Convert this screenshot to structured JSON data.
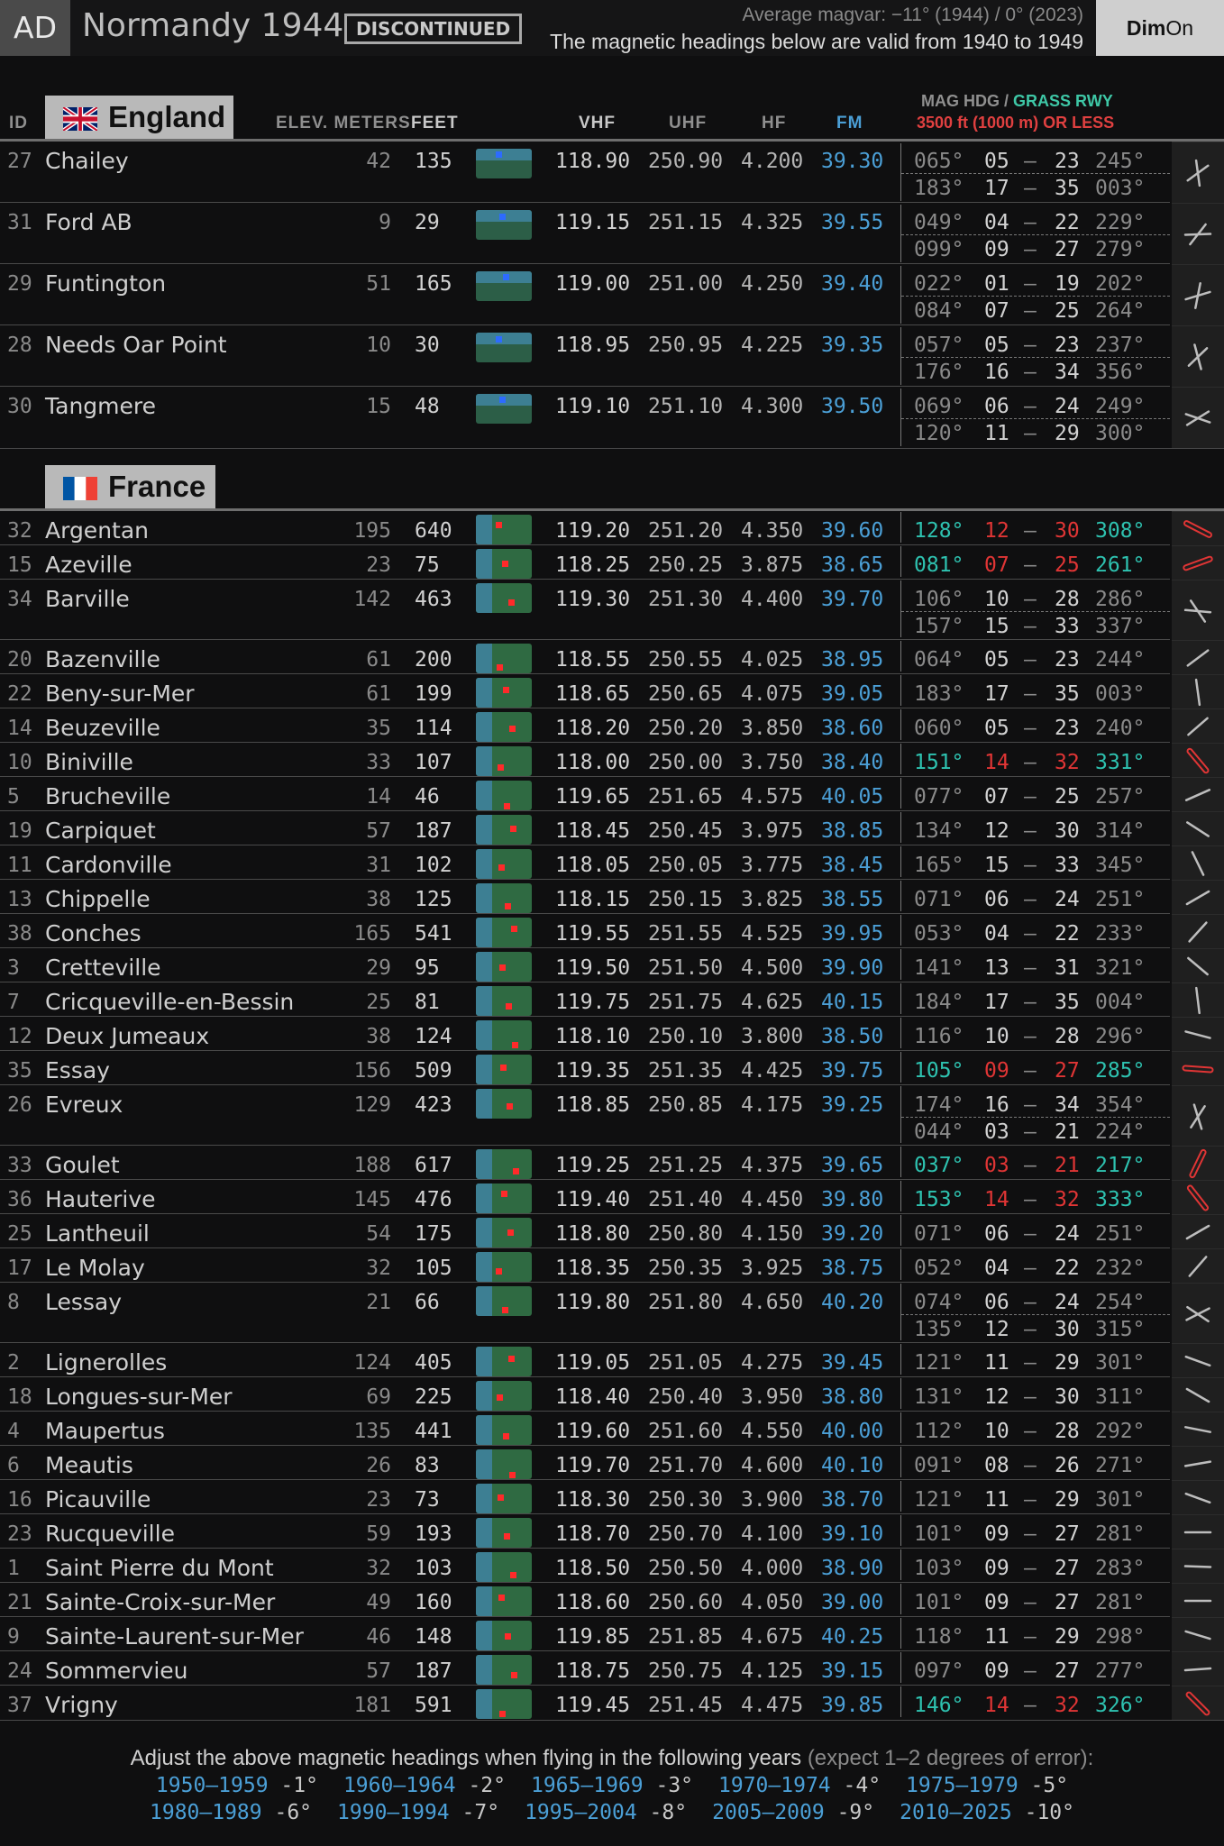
{
  "header": {
    "code": "AD",
    "title": "Normandy 1944",
    "status_badge": "DISCONTINUED",
    "magvar_line": "Average magvar: −11° (1944) / 0° (2023)",
    "validity_line": "The magnetic headings below are valid from 1940 to 1949",
    "dim_button": {
      "dim": "Dim",
      "on": "On"
    }
  },
  "columns": {
    "id": "ID",
    "elev_meters": "ELEV. METERS",
    "feet": "FEET",
    "vhf": "VHF",
    "uhf": "UHF",
    "hf": "HF",
    "fm": "FM",
    "mag_hdg": "MAG HDG /",
    "grass_rwy": "GRASS RWY",
    "rwy_note": "3500 ft (1000 m) OR LESS"
  },
  "colors": {
    "blue": "#4b9fd6",
    "red": "#e03535",
    "teal": "#2ec2b0",
    "grass": "#3ec7a6"
  },
  "england": {
    "name": "England",
    "flag": "uk-flag-icon",
    "airfields": [
      {
        "id": "27",
        "name": "Chailey",
        "m": "42",
        "ft": "135",
        "vhf": "118.90",
        "uhf": "250.90",
        "hf": "4.200",
        "fm": "39.30",
        "rwys": [
          [
            "065°",
            "05",
            "23",
            "245°"
          ],
          [
            "183°",
            "17",
            "35",
            "003°"
          ]
        ]
      },
      {
        "id": "31",
        "name": "Ford AB",
        "m": "9",
        "ft": "29",
        "vhf": "119.15",
        "uhf": "251.15",
        "hf": "4.325",
        "fm": "39.55",
        "rwys": [
          [
            "049°",
            "04",
            "22",
            "229°"
          ],
          [
            "099°",
            "09",
            "27",
            "279°"
          ]
        ]
      },
      {
        "id": "29",
        "name": "Funtington",
        "m": "51",
        "ft": "165",
        "vhf": "119.00",
        "uhf": "251.00",
        "hf": "4.250",
        "fm": "39.40",
        "rwys": [
          [
            "022°",
            "01",
            "19",
            "202°"
          ],
          [
            "084°",
            "07",
            "25",
            "264°"
          ]
        ]
      },
      {
        "id": "28",
        "name": "Needs Oar Point",
        "m": "10",
        "ft": "30",
        "vhf": "118.95",
        "uhf": "250.95",
        "hf": "4.225",
        "fm": "39.35",
        "rwys": [
          [
            "057°",
            "05",
            "23",
            "237°"
          ],
          [
            "176°",
            "16",
            "34",
            "356°"
          ]
        ]
      },
      {
        "id": "30",
        "name": "Tangmere",
        "m": "15",
        "ft": "48",
        "vhf": "119.10",
        "uhf": "251.10",
        "hf": "4.300",
        "fm": "39.50",
        "rwys": [
          [
            "069°",
            "06",
            "24",
            "249°"
          ],
          [
            "120°",
            "11",
            "29",
            "300°"
          ]
        ]
      }
    ]
  },
  "france": {
    "name": "France",
    "flag": "france-flag-icon",
    "airfields": [
      {
        "id": "32",
        "name": "Argentan",
        "m": "195",
        "ft": "640",
        "vhf": "119.20",
        "uhf": "251.20",
        "hf": "4.350",
        "fm": "39.60",
        "grass": true,
        "rwys": [
          [
            "128°",
            "12",
            "30",
            "308°"
          ]
        ]
      },
      {
        "id": "15",
        "name": "Azeville",
        "m": "23",
        "ft": "75",
        "vhf": "118.25",
        "uhf": "250.25",
        "hf": "3.875",
        "fm": "38.65",
        "grass": true,
        "rwys": [
          [
            "081°",
            "07",
            "25",
            "261°"
          ]
        ]
      },
      {
        "id": "34",
        "name": "Barville",
        "m": "142",
        "ft": "463",
        "vhf": "119.30",
        "uhf": "251.30",
        "hf": "4.400",
        "fm": "39.70",
        "rwys": [
          [
            "106°",
            "10",
            "28",
            "286°"
          ],
          [
            "157°",
            "15",
            "33",
            "337°"
          ]
        ]
      },
      {
        "id": "20",
        "name": "Bazenville",
        "m": "61",
        "ft": "200",
        "vhf": "118.55",
        "uhf": "250.55",
        "hf": "4.025",
        "fm": "38.95",
        "rwys": [
          [
            "064°",
            "05",
            "23",
            "244°"
          ]
        ]
      },
      {
        "id": "22",
        "name": "Beny-sur-Mer",
        "m": "61",
        "ft": "199",
        "vhf": "118.65",
        "uhf": "250.65",
        "hf": "4.075",
        "fm": "39.05",
        "rwys": [
          [
            "183°",
            "17",
            "35",
            "003°"
          ]
        ]
      },
      {
        "id": "14",
        "name": "Beuzeville",
        "m": "35",
        "ft": "114",
        "vhf": "118.20",
        "uhf": "250.20",
        "hf": "3.850",
        "fm": "38.60",
        "rwys": [
          [
            "060°",
            "05",
            "23",
            "240°"
          ]
        ]
      },
      {
        "id": "10",
        "name": "Biniville",
        "m": "33",
        "ft": "107",
        "vhf": "118.00",
        "uhf": "250.00",
        "hf": "3.750",
        "fm": "38.40",
        "grass": true,
        "rwys": [
          [
            "151°",
            "14",
            "32",
            "331°"
          ]
        ]
      },
      {
        "id": "5",
        "name": "Brucheville",
        "m": "14",
        "ft": "46",
        "vhf": "119.65",
        "uhf": "251.65",
        "hf": "4.575",
        "fm": "40.05",
        "rwys": [
          [
            "077°",
            "07",
            "25",
            "257°"
          ]
        ]
      },
      {
        "id": "19",
        "name": "Carpiquet",
        "m": "57",
        "ft": "187",
        "vhf": "118.45",
        "uhf": "250.45",
        "hf": "3.975",
        "fm": "38.85",
        "rwys": [
          [
            "134°",
            "12",
            "30",
            "314°"
          ]
        ]
      },
      {
        "id": "11",
        "name": "Cardonville",
        "m": "31",
        "ft": "102",
        "vhf": "118.05",
        "uhf": "250.05",
        "hf": "3.775",
        "fm": "38.45",
        "rwys": [
          [
            "165°",
            "15",
            "33",
            "345°"
          ]
        ]
      },
      {
        "id": "13",
        "name": "Chippelle",
        "m": "38",
        "ft": "125",
        "vhf": "118.15",
        "uhf": "250.15",
        "hf": "3.825",
        "fm": "38.55",
        "rwys": [
          [
            "071°",
            "06",
            "24",
            "251°"
          ]
        ]
      },
      {
        "id": "38",
        "name": "Conches",
        "m": "165",
        "ft": "541",
        "vhf": "119.55",
        "uhf": "251.55",
        "hf": "4.525",
        "fm": "39.95",
        "rwys": [
          [
            "053°",
            "04",
            "22",
            "233°"
          ]
        ]
      },
      {
        "id": "3",
        "name": "Cretteville",
        "m": "29",
        "ft": "95",
        "vhf": "119.50",
        "uhf": "251.50",
        "hf": "4.500",
        "fm": "39.90",
        "rwys": [
          [
            "141°",
            "13",
            "31",
            "321°"
          ]
        ]
      },
      {
        "id": "7",
        "name": "Cricqueville-en-Bessin",
        "m": "25",
        "ft": "81",
        "vhf": "119.75",
        "uhf": "251.75",
        "hf": "4.625",
        "fm": "40.15",
        "rwys": [
          [
            "184°",
            "17",
            "35",
            "004°"
          ]
        ]
      },
      {
        "id": "12",
        "name": "Deux Jumeaux",
        "m": "38",
        "ft": "124",
        "vhf": "118.10",
        "uhf": "250.10",
        "hf": "3.800",
        "fm": "38.50",
        "rwys": [
          [
            "116°",
            "10",
            "28",
            "296°"
          ]
        ]
      },
      {
        "id": "35",
        "name": "Essay",
        "m": "156",
        "ft": "509",
        "vhf": "119.35",
        "uhf": "251.35",
        "hf": "4.425",
        "fm": "39.75",
        "grass": true,
        "rwys": [
          [
            "105°",
            "09",
            "27",
            "285°"
          ]
        ]
      },
      {
        "id": "26",
        "name": "Evreux",
        "m": "129",
        "ft": "423",
        "vhf": "118.85",
        "uhf": "250.85",
        "hf": "4.175",
        "fm": "39.25",
        "rwys": [
          [
            "174°",
            "16",
            "34",
            "354°"
          ],
          [
            "044°",
            "03",
            "21",
            "224°"
          ]
        ]
      },
      {
        "id": "33",
        "name": "Goulet",
        "m": "188",
        "ft": "617",
        "vhf": "119.25",
        "uhf": "251.25",
        "hf": "4.375",
        "fm": "39.65",
        "grass": true,
        "rwys": [
          [
            "037°",
            "03",
            "21",
            "217°"
          ]
        ]
      },
      {
        "id": "36",
        "name": "Hauterive",
        "m": "145",
        "ft": "476",
        "vhf": "119.40",
        "uhf": "251.40",
        "hf": "4.450",
        "fm": "39.80",
        "grass": true,
        "rwys": [
          [
            "153°",
            "14",
            "32",
            "333°"
          ]
        ]
      },
      {
        "id": "25",
        "name": "Lantheuil",
        "m": "54",
        "ft": "175",
        "vhf": "118.80",
        "uhf": "250.80",
        "hf": "4.150",
        "fm": "39.20",
        "rwys": [
          [
            "071°",
            "06",
            "24",
            "251°"
          ]
        ]
      },
      {
        "id": "17",
        "name": "Le Molay",
        "m": "32",
        "ft": "105",
        "vhf": "118.35",
        "uhf": "250.35",
        "hf": "3.925",
        "fm": "38.75",
        "rwys": [
          [
            "052°",
            "04",
            "22",
            "232°"
          ]
        ]
      },
      {
        "id": "8",
        "name": "Lessay",
        "m": "21",
        "ft": "66",
        "vhf": "119.80",
        "uhf": "251.80",
        "hf": "4.650",
        "fm": "40.20",
        "rwys": [
          [
            "074°",
            "06",
            "24",
            "254°"
          ],
          [
            "135°",
            "12",
            "30",
            "315°"
          ]
        ]
      },
      {
        "id": "2",
        "name": "Lignerolles",
        "m": "124",
        "ft": "405",
        "vhf": "119.05",
        "uhf": "251.05",
        "hf": "4.275",
        "fm": "39.45",
        "rwys": [
          [
            "121°",
            "11",
            "29",
            "301°"
          ]
        ]
      },
      {
        "id": "18",
        "name": "Longues-sur-Mer",
        "m": "69",
        "ft": "225",
        "vhf": "118.40",
        "uhf": "250.40",
        "hf": "3.950",
        "fm": "38.80",
        "rwys": [
          [
            "131°",
            "12",
            "30",
            "311°"
          ]
        ]
      },
      {
        "id": "4",
        "name": "Maupertus",
        "m": "135",
        "ft": "441",
        "vhf": "119.60",
        "uhf": "251.60",
        "hf": "4.550",
        "fm": "40.00",
        "rwys": [
          [
            "112°",
            "10",
            "28",
            "292°"
          ]
        ]
      },
      {
        "id": "6",
        "name": "Meautis",
        "m": "26",
        "ft": "83",
        "vhf": "119.70",
        "uhf": "251.70",
        "hf": "4.600",
        "fm": "40.10",
        "rwys": [
          [
            "091°",
            "08",
            "26",
            "271°"
          ]
        ]
      },
      {
        "id": "16",
        "name": "Picauville",
        "m": "23",
        "ft": "73",
        "vhf": "118.30",
        "uhf": "250.30",
        "hf": "3.900",
        "fm": "38.70",
        "rwys": [
          [
            "121°",
            "11",
            "29",
            "301°"
          ]
        ]
      },
      {
        "id": "23",
        "name": "Rucqueville",
        "m": "59",
        "ft": "193",
        "vhf": "118.70",
        "uhf": "250.70",
        "hf": "4.100",
        "fm": "39.10",
        "rwys": [
          [
            "101°",
            "09",
            "27",
            "281°"
          ]
        ]
      },
      {
        "id": "1",
        "name": "Saint Pierre du Mont",
        "m": "32",
        "ft": "103",
        "vhf": "118.50",
        "uhf": "250.50",
        "hf": "4.000",
        "fm": "38.90",
        "rwys": [
          [
            "103°",
            "09",
            "27",
            "283°"
          ]
        ]
      },
      {
        "id": "21",
        "name": "Sainte-Croix-sur-Mer",
        "m": "49",
        "ft": "160",
        "vhf": "118.60",
        "uhf": "250.60",
        "hf": "4.050",
        "fm": "39.00",
        "rwys": [
          [
            "101°",
            "09",
            "27",
            "281°"
          ]
        ]
      },
      {
        "id": "9",
        "name": "Sainte-Laurent-sur-Mer",
        "m": "46",
        "ft": "148",
        "vhf": "119.85",
        "uhf": "251.85",
        "hf": "4.675",
        "fm": "40.25",
        "rwys": [
          [
            "118°",
            "11",
            "29",
            "298°"
          ]
        ]
      },
      {
        "id": "24",
        "name": "Sommervieu",
        "m": "57",
        "ft": "187",
        "vhf": "118.75",
        "uhf": "250.75",
        "hf": "4.125",
        "fm": "39.15",
        "rwys": [
          [
            "097°",
            "09",
            "27",
            "277°"
          ]
        ]
      },
      {
        "id": "37",
        "name": "Vrigny",
        "m": "181",
        "ft": "591",
        "vhf": "119.45",
        "uhf": "251.45",
        "hf": "4.475",
        "fm": "39.85",
        "grass": true,
        "rwys": [
          [
            "146°",
            "14",
            "32",
            "326°"
          ]
        ]
      }
    ]
  },
  "footer": {
    "note": "Adjust the above magnetic headings when flying in the following years",
    "note_paren": "(expect 1–2 degrees of error):",
    "adjustments_row1": [
      [
        "1950–1959",
        "-1°"
      ],
      [
        "1960–1964",
        "-2°"
      ],
      [
        "1965–1969",
        "-3°"
      ],
      [
        "1970–1974",
        "-4°"
      ],
      [
        "1975–1979",
        "-5°"
      ]
    ],
    "adjustments_row2": [
      [
        "1980–1989",
        "-6°"
      ],
      [
        "1990–1994",
        "-7°"
      ],
      [
        "1995–2004",
        "-8°"
      ],
      [
        "2005–2009",
        "-9°"
      ],
      [
        "2010–2025",
        "-10°"
      ]
    ]
  }
}
